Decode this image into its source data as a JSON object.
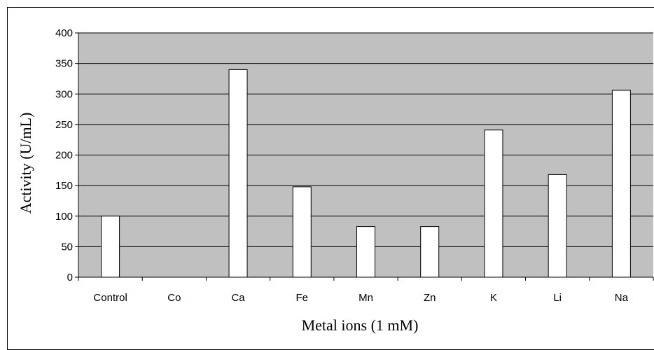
{
  "chart_data": {
    "type": "bar",
    "categories": [
      "Control",
      "Co",
      "Ca",
      "Fe",
      "Mn",
      "Zn",
      "K",
      "Li",
      "Na"
    ],
    "values": [
      100,
      0,
      340,
      148,
      83,
      83,
      241,
      168,
      306
    ],
    "xlabel": "Metal ions (1 mM)",
    "ylabel": "Activity (U/mL)",
    "ylim": [
      0,
      400
    ],
    "yticks": [
      0,
      50,
      100,
      150,
      200,
      250,
      300,
      350,
      400
    ],
    "grid": true,
    "legend": "none",
    "colors": {
      "plot_background": "#c0c0c0",
      "bar_fill": "#ffffff",
      "bar_stroke": "#000000",
      "gridline": "#000000"
    }
  }
}
